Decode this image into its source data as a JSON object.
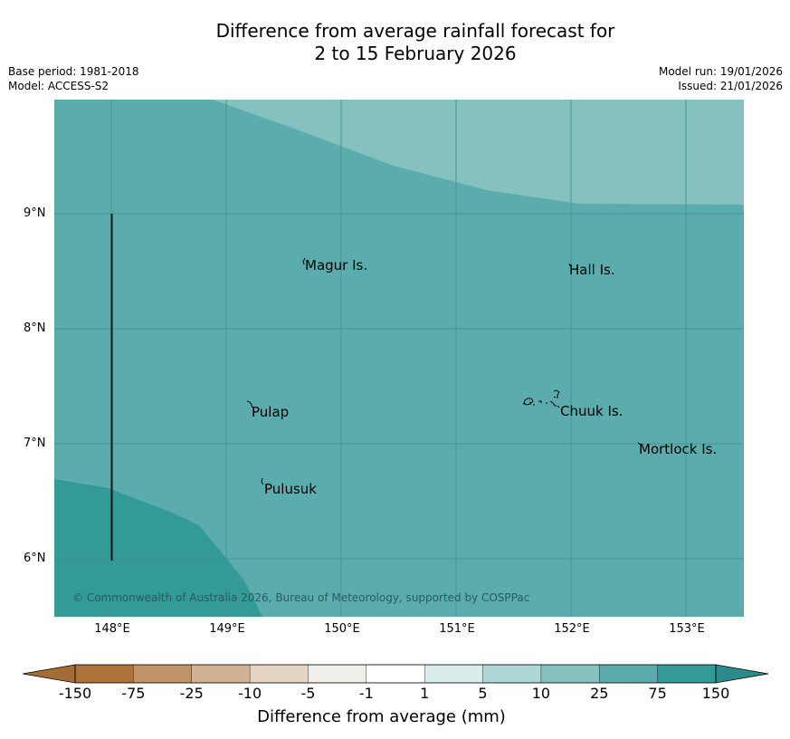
{
  "title": {
    "line1": "Difference from average rainfall forecast for",
    "line2": "2 to 15 February 2026"
  },
  "meta": {
    "base_period": "Base period: 1981-2018",
    "model": "Model: ACCESS-S2",
    "model_run": "Model run: 19/01/2026",
    "issued": "Issued: 21/01/2026"
  },
  "map": {
    "places": [
      {
        "name": "Magur Is."
      },
      {
        "name": "Hall Is."
      },
      {
        "name": "Pulap"
      },
      {
        "name": "Chuuk Is."
      },
      {
        "name": "Mortlock Is."
      },
      {
        "name": "Pulusuk"
      }
    ],
    "lat_labels": [
      "9°N",
      "8°N",
      "7°N",
      "6°N"
    ],
    "lon_labels": [
      "148°E",
      "149°E",
      "150°E",
      "151°E",
      "152°E",
      "153°E"
    ],
    "copyright": "© Commonwealth of Australia 2026, Bureau of Meteorology, supported by COSPPac",
    "fill_colors": {
      "10_to_25": "#84c1bf",
      "25_to_75": "#5bacac",
      "75_to_150": "#349a98"
    }
  },
  "legend": {
    "ticks": [
      "-150",
      "-75",
      "-25",
      "-10",
      "-5",
      "-1",
      "1",
      "5",
      "10",
      "25",
      "75",
      "150"
    ],
    "colors": [
      "#ae733b",
      "#c19468",
      "#d2b194",
      "#e5d5c5",
      "#f0eee9",
      "#ffffff",
      "#d8ecec",
      "#aed7d6",
      "#84c1bf",
      "#5bacac",
      "#349a98"
    ],
    "under_color": "#a56d35",
    "over_color": "#2a8c8a",
    "label": "Difference from average (mm)"
  }
}
